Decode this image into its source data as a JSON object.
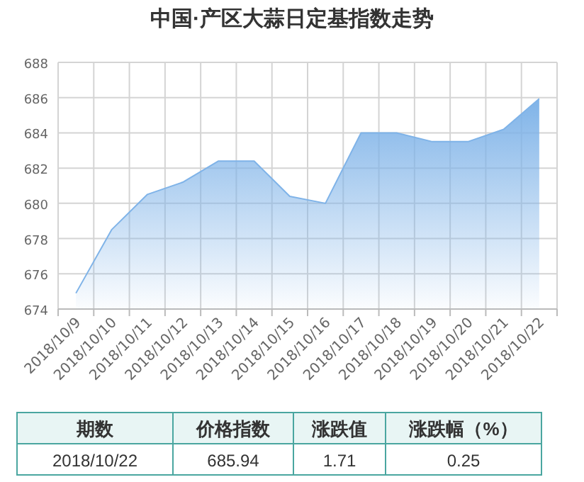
{
  "chart_data": {
    "type": "area",
    "title": "中国·产区大蒜日定基指数走势",
    "categories": [
      "2018/10/9",
      "2018/10/10",
      "2018/10/11",
      "2018/10/12",
      "2018/10/13",
      "2018/10/14",
      "2018/10/15",
      "2018/10/16",
      "2018/10/17",
      "2018/10/18",
      "2018/10/19",
      "2018/10/20",
      "2018/10/21",
      "2018/10/22"
    ],
    "series": [
      {
        "color": "#7fb3e8",
        "values": [
          674.9,
          678.5,
          680.5,
          681.2,
          682.4,
          682.4,
          680.4,
          680.0,
          684.0,
          684.0,
          683.5,
          683.5,
          684.2,
          685.94
        ]
      }
    ],
    "ylim": [
      674,
      688
    ],
    "yticks": [
      674,
      676,
      678,
      680,
      682,
      684,
      686,
      688
    ],
    "grid": true,
    "annotations": [
      "期数",
      "价格指数",
      "涨跌值",
      "涨跌幅（%）",
      "2018/10/22",
      "685.94",
      "1.71",
      "0.25"
    ]
  }
}
